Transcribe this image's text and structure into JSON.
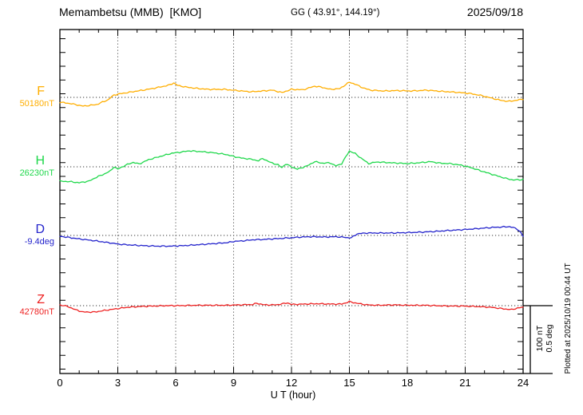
{
  "header": {
    "station_title": "Memambetsu (MMB)  [KMO]",
    "gg_coords": "GG ( 43.91°, 144.19°)",
    "date": "2025/09/18"
  },
  "footer": {
    "xlabel": "U T (hour)"
  },
  "side": {
    "scale_label_line1": "100 nT",
    "scale_label_line2": "0.5 deg",
    "plotted_at": "Plotted at 2025/10/19 00:44 UT"
  },
  "chart_data": {
    "type": "line",
    "title": "Memambetsu (MMB) [KMO] magnetogram, 2025/09/18",
    "xlabel": "U T (hour)",
    "x_range_hours": [
      0,
      24
    ],
    "x_ticks": [
      "0",
      "3",
      "6",
      "9",
      "12",
      "15",
      "18",
      "21",
      "24"
    ],
    "grid": "dotted vertical gridlines every 3 h; dotted horizontal reference line per channel",
    "legend_position": "left margin channel labels",
    "scale_per_division": {
      "field": "100 nT",
      "declination": "0.5 deg"
    },
    "series": [
      {
        "name": "F",
        "unit": "nT",
        "reference_label": "50180nT",
        "reference_value": 50180,
        "color": "#FFAE00",
        "points": [
          [
            0,
            -7.1
          ],
          [
            0.6,
            -9.4
          ],
          [
            1.2,
            -12.9
          ],
          [
            1.9,
            -10.6
          ],
          [
            2.5,
            -3.5
          ],
          [
            2.8,
            3.5
          ],
          [
            3.0,
            4.7
          ],
          [
            3.5,
            7.1
          ],
          [
            4.3,
            10.6
          ],
          [
            5.0,
            14.1
          ],
          [
            5.6,
            17.6
          ],
          [
            5.9,
            21.2
          ],
          [
            6.1,
            17.6
          ],
          [
            6.5,
            15.3
          ],
          [
            7.0,
            13.5
          ],
          [
            7.7,
            11.8
          ],
          [
            8.5,
            11.8
          ],
          [
            9.2,
            10.0
          ],
          [
            9.9,
            8.2
          ],
          [
            10.5,
            9.4
          ],
          [
            11.0,
            10.6
          ],
          [
            11.5,
            7.1
          ],
          [
            12.0,
            11.8
          ],
          [
            12.6,
            11.2
          ],
          [
            13.2,
            16.5
          ],
          [
            13.6,
            14.7
          ],
          [
            14.0,
            11.8
          ],
          [
            14.5,
            12.9
          ],
          [
            15.0,
            22.4
          ],
          [
            15.3,
            19.4
          ],
          [
            15.7,
            14.1
          ],
          [
            16.1,
            10.6
          ],
          [
            16.8,
            9.4
          ],
          [
            17.5,
            10.0
          ],
          [
            18.2,
            9.4
          ],
          [
            19.0,
            10.6
          ],
          [
            19.8,
            8.8
          ],
          [
            20.5,
            7.6
          ],
          [
            21.2,
            5.9
          ],
          [
            21.8,
            2.9
          ],
          [
            22.3,
            -0.6
          ],
          [
            22.8,
            -4.1
          ],
          [
            23.2,
            -5.9
          ],
          [
            23.6,
            -4.7
          ],
          [
            24,
            -2.4
          ]
        ]
      },
      {
        "name": "H",
        "unit": "nT",
        "reference_label": "26230nT",
        "reference_value": 26230,
        "color": "#1FD84B",
        "points": [
          [
            0,
            -21.2
          ],
          [
            0.5,
            -21.8
          ],
          [
            1.0,
            -23.5
          ],
          [
            1.5,
            -21.2
          ],
          [
            1.9,
            -15.3
          ],
          [
            2.3,
            -10.6
          ],
          [
            2.6,
            -6.5
          ],
          [
            2.8,
            0.0
          ],
          [
            3.0,
            -3.5
          ],
          [
            3.4,
            2.4
          ],
          [
            3.8,
            6.5
          ],
          [
            4.1,
            4.1
          ],
          [
            4.6,
            10.6
          ],
          [
            5.2,
            15.3
          ],
          [
            5.8,
            20.0
          ],
          [
            6.3,
            21.8
          ],
          [
            6.7,
            23.5
          ],
          [
            7.3,
            22.4
          ],
          [
            8.0,
            20.6
          ],
          [
            8.6,
            18.2
          ],
          [
            9.0,
            15.3
          ],
          [
            9.4,
            12.9
          ],
          [
            9.9,
            11.2
          ],
          [
            10.3,
            8.8
          ],
          [
            10.5,
            12.4
          ],
          [
            10.9,
            6.5
          ],
          [
            11.3,
            2.9
          ],
          [
            11.5,
            -1.2
          ],
          [
            11.7,
            4.1
          ],
          [
            12.0,
            0.0
          ],
          [
            12.3,
            -3.5
          ],
          [
            12.8,
            1.2
          ],
          [
            13.2,
            7.6
          ],
          [
            13.6,
            5.3
          ],
          [
            14.0,
            5.9
          ],
          [
            14.3,
            1.2
          ],
          [
            14.6,
            4.7
          ],
          [
            15.0,
            23.5
          ],
          [
            15.3,
            19.4
          ],
          [
            15.6,
            12.9
          ],
          [
            16.0,
            4.7
          ],
          [
            16.4,
            7.1
          ],
          [
            17.2,
            5.9
          ],
          [
            18.0,
            4.7
          ],
          [
            18.6,
            5.9
          ],
          [
            19.2,
            7.6
          ],
          [
            19.7,
            5.3
          ],
          [
            20.2,
            4.7
          ],
          [
            20.8,
            2.4
          ],
          [
            21.3,
            -1.2
          ],
          [
            21.8,
            -5.9
          ],
          [
            22.2,
            -9.4
          ],
          [
            22.6,
            -12.9
          ],
          [
            23.1,
            -17.1
          ],
          [
            23.5,
            -19.4
          ],
          [
            24,
            -18.8
          ]
        ]
      },
      {
        "name": "D",
        "unit": "deg",
        "reference_label": "-9.4deg",
        "reference_value": -9.4,
        "color": "#2424CC",
        "points": [
          [
            0,
            -0.006
          ],
          [
            0.6,
            -0.018
          ],
          [
            1.2,
            -0.029
          ],
          [
            1.9,
            -0.041
          ],
          [
            2.5,
            -0.053
          ],
          [
            3.1,
            -0.065
          ],
          [
            3.7,
            -0.071
          ],
          [
            4.4,
            -0.076
          ],
          [
            5.0,
            -0.079
          ],
          [
            5.7,
            -0.079
          ],
          [
            6.3,
            -0.076
          ],
          [
            6.9,
            -0.071
          ],
          [
            7.5,
            -0.065
          ],
          [
            8.1,
            -0.059
          ],
          [
            8.7,
            -0.053
          ],
          [
            9.0,
            -0.044
          ],
          [
            9.4,
            -0.041
          ],
          [
            10.0,
            -0.032
          ],
          [
            10.6,
            -0.029
          ],
          [
            11.2,
            -0.024
          ],
          [
            11.9,
            -0.018
          ],
          [
            12.5,
            -0.012
          ],
          [
            13.1,
            -0.009
          ],
          [
            13.7,
            -0.012
          ],
          [
            14.3,
            -0.009
          ],
          [
            14.8,
            -0.015
          ],
          [
            15.1,
            -0.018
          ],
          [
            15.4,
            0.012
          ],
          [
            15.9,
            0.018
          ],
          [
            16.6,
            0.018
          ],
          [
            17.3,
            0.018
          ],
          [
            18.0,
            0.021
          ],
          [
            18.7,
            0.024
          ],
          [
            19.4,
            0.029
          ],
          [
            20.0,
            0.035
          ],
          [
            20.7,
            0.041
          ],
          [
            21.3,
            0.047
          ],
          [
            21.9,
            0.053
          ],
          [
            22.4,
            0.059
          ],
          [
            22.9,
            0.062
          ],
          [
            23.3,
            0.065
          ],
          [
            23.6,
            0.053
          ],
          [
            23.85,
            0.032
          ],
          [
            24,
            -0.006
          ]
        ]
      },
      {
        "name": "Z",
        "unit": "nT",
        "reference_label": "42780nT",
        "reference_value": 42780,
        "color": "#EE2222",
        "points": [
          [
            0,
            1.2
          ],
          [
            0.4,
            -1.2
          ],
          [
            0.8,
            -5.9
          ],
          [
            1.2,
            -9.4
          ],
          [
            1.8,
            -9.4
          ],
          [
            2.3,
            -7.1
          ],
          [
            2.9,
            -4.7
          ],
          [
            3.5,
            -2.4
          ],
          [
            4.2,
            -1.2
          ],
          [
            4.8,
            -0.6
          ],
          [
            5.5,
            0.0
          ],
          [
            6.2,
            0.0
          ],
          [
            7.0,
            0.6
          ],
          [
            7.8,
            0.6
          ],
          [
            8.6,
            0.6
          ],
          [
            9.4,
            1.2
          ],
          [
            10.0,
            1.8
          ],
          [
            10.2,
            3.5
          ],
          [
            10.6,
            1.2
          ],
          [
            11.2,
            1.2
          ],
          [
            11.8,
            4.1
          ],
          [
            12.0,
            1.8
          ],
          [
            12.7,
            2.4
          ],
          [
            13.3,
            2.9
          ],
          [
            14.0,
            2.4
          ],
          [
            14.6,
            2.4
          ],
          [
            15.0,
            5.9
          ],
          [
            15.4,
            3.5
          ],
          [
            15.9,
            1.2
          ],
          [
            16.5,
            0.6
          ],
          [
            17.3,
            1.2
          ],
          [
            18.1,
            0.6
          ],
          [
            18.9,
            0.6
          ],
          [
            19.5,
            0.0
          ],
          [
            20.2,
            -0.6
          ],
          [
            20.9,
            -0.6
          ],
          [
            21.5,
            -1.2
          ],
          [
            22.0,
            -1.8
          ],
          [
            22.5,
            -2.9
          ],
          [
            23.0,
            -4.7
          ],
          [
            23.4,
            -5.9
          ],
          [
            23.7,
            -3.5
          ],
          [
            24,
            -2.4
          ]
        ]
      }
    ]
  }
}
